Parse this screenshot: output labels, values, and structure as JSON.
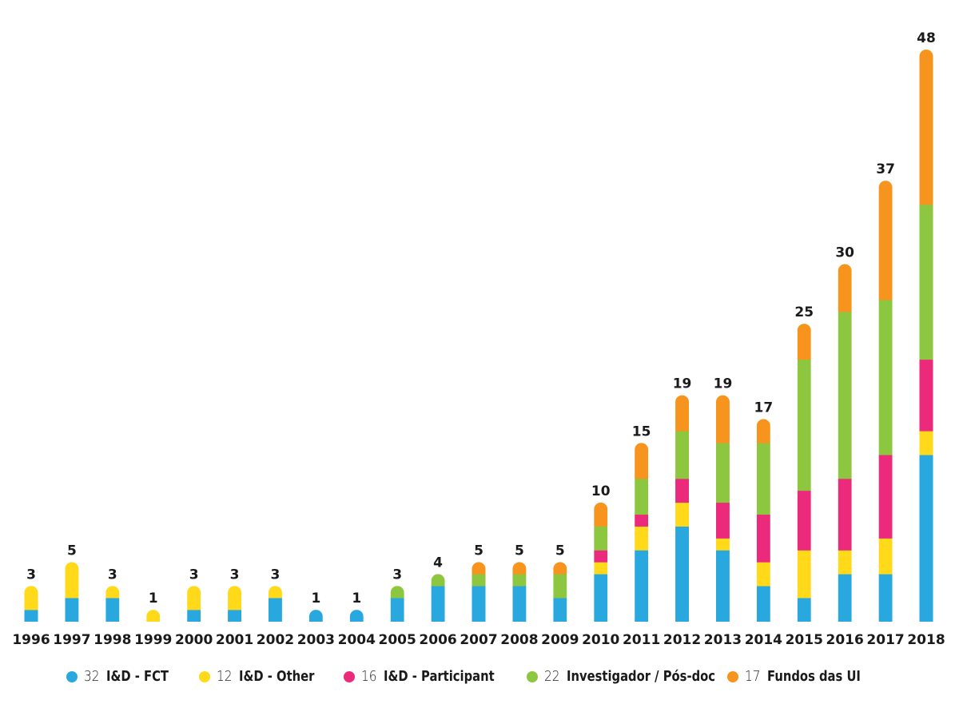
{
  "chart_data": {
    "type": "bar",
    "stacked": true,
    "title": "",
    "xlabel": "",
    "ylabel": "",
    "ylim": [
      0,
      48
    ],
    "grid": false,
    "legend_position": "bottom",
    "categories": [
      "1996",
      "1997",
      "1998",
      "1999",
      "2000",
      "2001",
      "2002",
      "2003",
      "2004",
      "2005",
      "2006",
      "2007",
      "2008",
      "2009",
      "2010",
      "2011",
      "2012",
      "2013",
      "2014",
      "2015",
      "2016",
      "2017",
      "2018"
    ],
    "totals": [
      3,
      5,
      3,
      1,
      3,
      3,
      3,
      1,
      1,
      3,
      4,
      5,
      5,
      5,
      10,
      15,
      19,
      19,
      17,
      25,
      30,
      37,
      48
    ],
    "series": [
      {
        "name": "I&D - FCT",
        "legend_count": "32",
        "color": "#29A8E0",
        "values": [
          1,
          2,
          2,
          0,
          1,
          1,
          2,
          1,
          1,
          2,
          3,
          3,
          3,
          2,
          4,
          6,
          8,
          6,
          3,
          2,
          4,
          4,
          14
        ]
      },
      {
        "name": "I&D - Other",
        "legend_count": "12",
        "color": "#FFD91A",
        "values": [
          2,
          3,
          1,
          1,
          2,
          2,
          1,
          0,
          0,
          0,
          0,
          0,
          0,
          0,
          1,
          2,
          2,
          1,
          2,
          4,
          2,
          3,
          2
        ]
      },
      {
        "name": "I&D - Participant",
        "legend_count": "16",
        "color": "#EC2A7B",
        "values": [
          0,
          0,
          0,
          0,
          0,
          0,
          0,
          0,
          0,
          0,
          0,
          0,
          0,
          0,
          1,
          1,
          2,
          3,
          4,
          5,
          6,
          7,
          6
        ]
      },
      {
        "name": "Investigador / Pós-doc",
        "legend_count": "22",
        "color": "#8DC63F",
        "values": [
          0,
          0,
          0,
          0,
          0,
          0,
          0,
          0,
          0,
          1,
          1,
          1,
          1,
          2,
          2,
          3,
          4,
          5,
          6,
          11,
          14,
          13,
          13
        ]
      },
      {
        "name": "Fundos das UI",
        "legend_count": "17",
        "color": "#F7941D",
        "values": [
          0,
          0,
          0,
          0,
          0,
          0,
          0,
          0,
          0,
          0,
          0,
          1,
          1,
          1,
          2,
          3,
          3,
          4,
          2,
          3,
          4,
          10,
          13
        ]
      }
    ]
  }
}
